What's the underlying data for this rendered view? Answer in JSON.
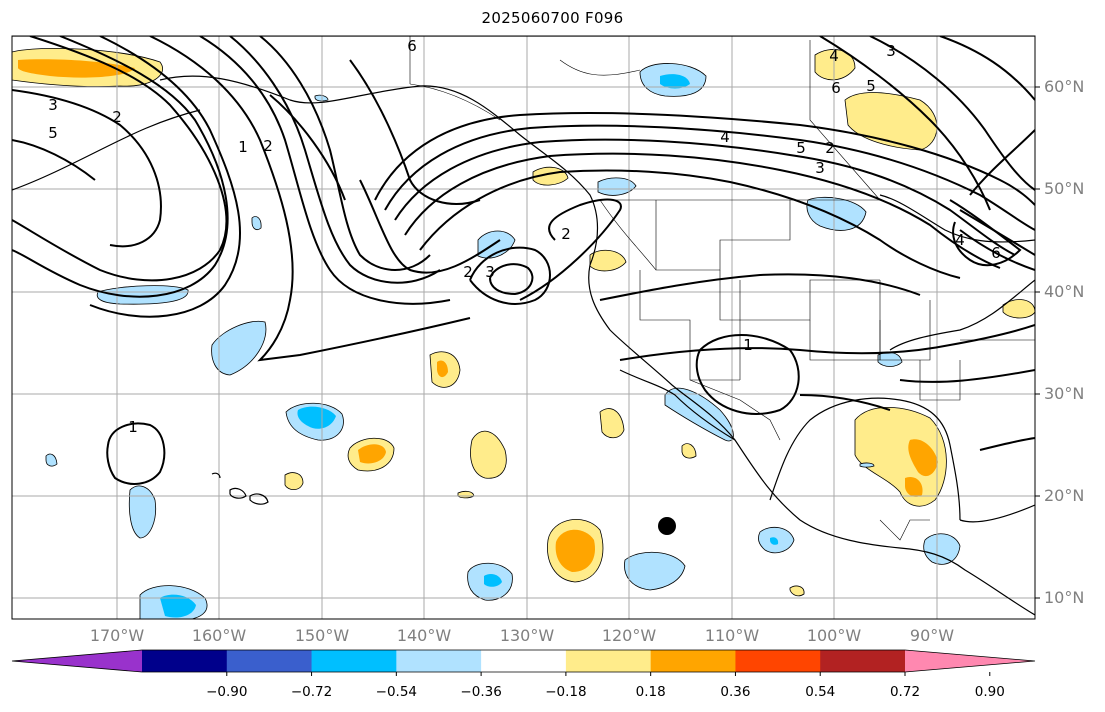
{
  "title": "2025060700 F096",
  "lat_labels": [
    "60°N",
    "50°N",
    "40°N",
    "30°N",
    "20°N",
    "10°N"
  ],
  "lon_labels": [
    "170°W",
    "160°W",
    "150°W",
    "140°W",
    "130°W",
    "120°W",
    "110°W",
    "100°W",
    "90°W"
  ],
  "contour_labels": [
    "6",
    "3",
    "2",
    "5",
    "1",
    "2",
    "2",
    "4",
    "5",
    "3",
    "2",
    "3",
    "2",
    "1",
    "1",
    "4",
    "6",
    "5",
    "4",
    "3",
    "6"
  ],
  "colorbar": {
    "ticks": [
      "−0.90",
      "−0.72",
      "−0.54",
      "−0.36",
      "−0.18",
      "0.18",
      "0.36",
      "0.54",
      "0.72",
      "0.90"
    ],
    "colors": [
      "#9932cc",
      "#00008b",
      "#3a5fcd",
      "#00bfff",
      "#b0e2ff",
      "#ffffff",
      "#ffec8b",
      "#ffa500",
      "#ff4500",
      "#b22222",
      "#ff88b0"
    ]
  },
  "marker": "storm-center"
}
